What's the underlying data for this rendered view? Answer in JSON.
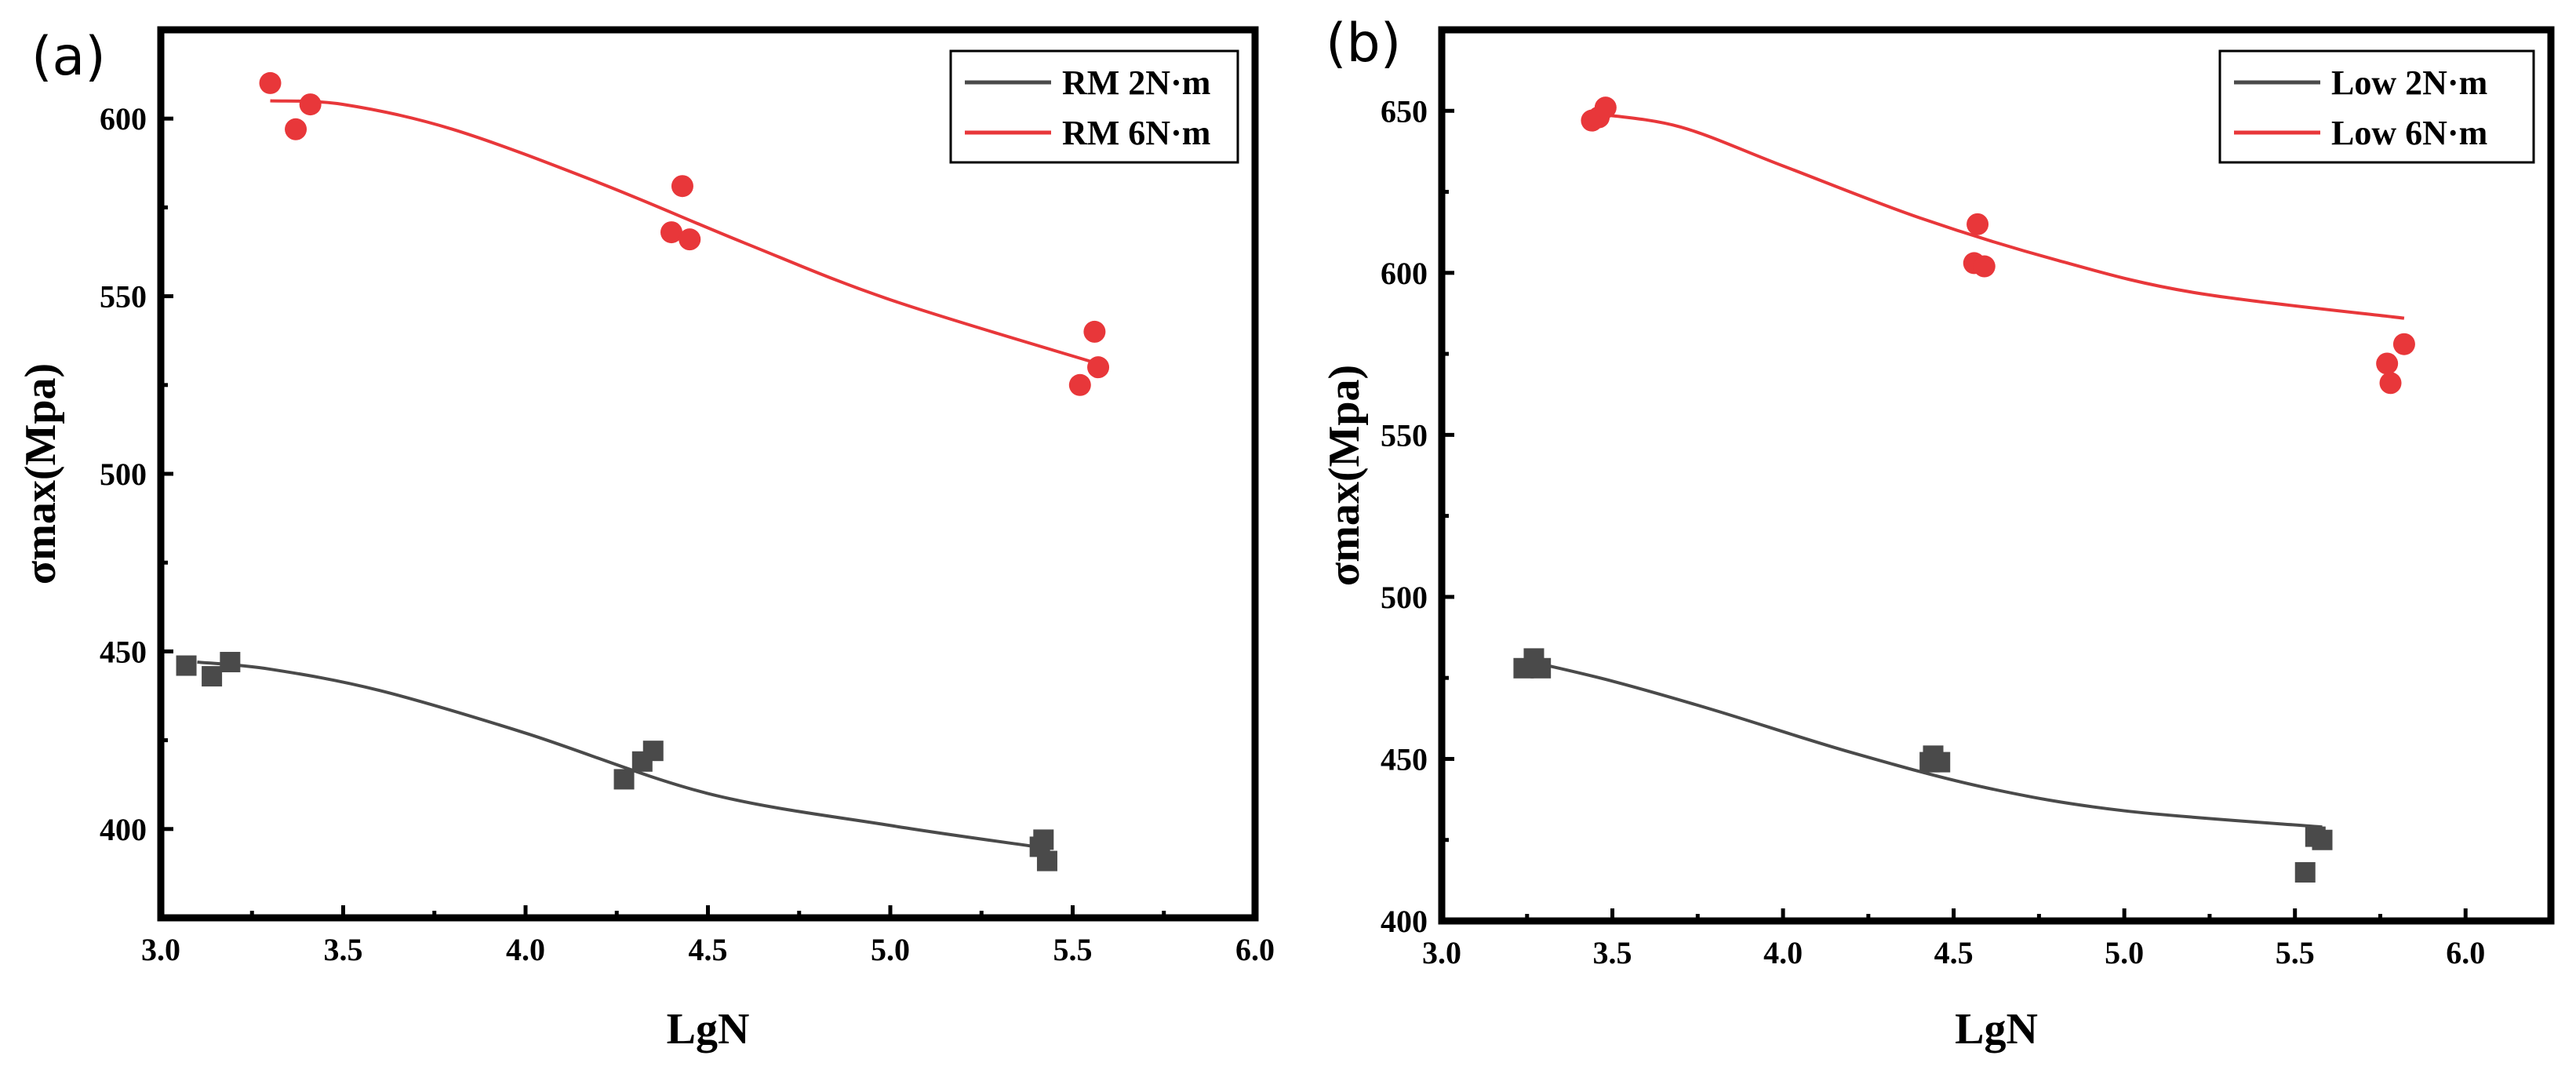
{
  "chart_data": [
    {
      "type": "scatter",
      "panel": "(a)",
      "xlabel": "LgN",
      "ylabel": "σmax(Mpa)",
      "xlim": [
        3.0,
        6.0
      ],
      "ylim": [
        375,
        625
      ],
      "xticks": [
        "3.0",
        "3.5",
        "4.0",
        "4.5",
        "5.0",
        "5.5",
        "6.0"
      ],
      "yticks": [
        "400",
        "450",
        "500",
        "550",
        "600"
      ],
      "legend_position": "top-right",
      "series": [
        {
          "name": "RM 2N·m",
          "color": "#4a4a4a",
          "marker": "square",
          "points": [
            [
              3.07,
              446
            ],
            [
              3.14,
              443
            ],
            [
              3.19,
              447
            ],
            [
              4.27,
              414
            ],
            [
              4.32,
              419
            ],
            [
              4.35,
              422
            ],
            [
              5.41,
              395
            ],
            [
              5.42,
              397
            ],
            [
              5.43,
              391
            ]
          ],
          "fit": [
            [
              3.1,
              447
            ],
            [
              3.3,
              445
            ],
            [
              3.6,
              439
            ],
            [
              4.0,
              427
            ],
            [
              4.5,
              410
            ],
            [
              5.0,
              401
            ],
            [
              5.4,
              395
            ]
          ]
        },
        {
          "name": "RM 6N·m",
          "color": "#e8373a",
          "marker": "circle",
          "points": [
            [
              3.3,
              610
            ],
            [
              3.37,
              597
            ],
            [
              3.41,
              604
            ],
            [
              4.4,
              568
            ],
            [
              4.43,
              581
            ],
            [
              4.45,
              566
            ],
            [
              5.52,
              525
            ],
            [
              5.56,
              540
            ],
            [
              5.57,
              530
            ]
          ],
          "fit": [
            [
              3.3,
              605
            ],
            [
              3.5,
              604
            ],
            [
              3.8,
              597
            ],
            [
              4.2,
              582
            ],
            [
              4.6,
              565
            ],
            [
              5.0,
              549
            ],
            [
              5.57,
              531
            ]
          ]
        }
      ]
    },
    {
      "type": "scatter",
      "panel": "(b)",
      "xlabel": "LgN",
      "ylabel": "σmax(Mpa)",
      "xlim": [
        3.0,
        6.25
      ],
      "ylim": [
        400,
        675
      ],
      "xticks": [
        "3.0",
        "3.5",
        "4.0",
        "4.5",
        "5.0",
        "5.5",
        "6.0"
      ],
      "yticks": [
        "400",
        "450",
        "500",
        "550",
        "600",
        "650"
      ],
      "legend_position": "top-right",
      "series": [
        {
          "name": "Low 2N·m",
          "color": "#4a4a4a",
          "marker": "square",
          "points": [
            [
              3.24,
              478
            ],
            [
              3.27,
              481
            ],
            [
              3.29,
              478
            ],
            [
              4.43,
              449
            ],
            [
              4.44,
              451
            ],
            [
              4.46,
              449
            ],
            [
              5.53,
              415
            ],
            [
              5.56,
              426
            ],
            [
              5.58,
              425
            ]
          ],
          "fit": [
            [
              3.26,
              480
            ],
            [
              3.5,
              474
            ],
            [
              3.8,
              465
            ],
            [
              4.2,
              452
            ],
            [
              4.6,
              441
            ],
            [
              5.0,
              434
            ],
            [
              5.58,
              429
            ]
          ]
        },
        {
          "name": "Low 6N·m",
          "color": "#e8373a",
          "marker": "circle",
          "points": [
            [
              3.44,
              647
            ],
            [
              3.46,
              648
            ],
            [
              3.48,
              651
            ],
            [
              4.56,
              603
            ],
            [
              4.57,
              615
            ],
            [
              4.59,
              602
            ],
            [
              5.77,
              572
            ],
            [
              5.78,
              566
            ],
            [
              5.82,
              578
            ]
          ],
          "fit": [
            [
              3.46,
              649
            ],
            [
              3.7,
              645
            ],
            [
              4.0,
              633
            ],
            [
              4.4,
              617
            ],
            [
              4.8,
              604
            ],
            [
              5.2,
              594
            ],
            [
              5.82,
              586
            ]
          ]
        }
      ]
    }
  ]
}
